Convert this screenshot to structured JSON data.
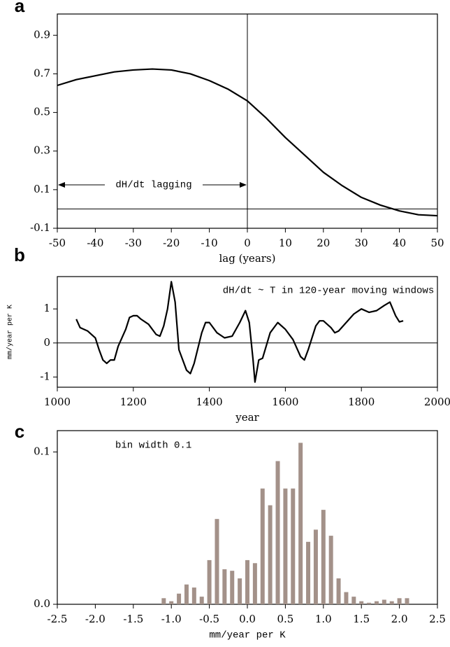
{
  "chart_data": [
    {
      "type": "line",
      "panel_label": "a",
      "xlabel": "lag (years)",
      "annotation": "dH/dt lagging",
      "x": [
        -50,
        -45,
        -40,
        -35,
        -30,
        -25,
        -20,
        -15,
        -10,
        -5,
        0,
        5,
        10,
        15,
        20,
        25,
        30,
        35,
        40,
        45,
        50
      ],
      "values": [
        0.64,
        0.67,
        0.69,
        0.71,
        0.72,
        0.725,
        0.72,
        0.7,
        0.665,
        0.62,
        0.56,
        0.47,
        0.37,
        0.28,
        0.19,
        0.12,
        0.06,
        0.02,
        -0.01,
        -0.03,
        -0.035
      ],
      "color": "#000000",
      "xlim": [
        -50,
        50
      ],
      "ylim": [
        -0.1,
        1.01
      ],
      "xticks": [
        -50,
        -40,
        -30,
        -20,
        -10,
        0,
        10,
        20,
        30,
        40,
        50
      ],
      "yticks": [
        -0.1,
        0.1,
        0.3,
        0.5,
        0.7,
        0.9
      ],
      "hline": 0,
      "vline": 0
    },
    {
      "type": "line",
      "panel_label": "b",
      "ylabel": "mm/year per K",
      "xlabel": "year",
      "annotation": "dH/dt ~ T in 120-year moving windows",
      "x": [
        1050,
        1060,
        1080,
        1100,
        1110,
        1120,
        1130,
        1140,
        1150,
        1160,
        1180,
        1190,
        1200,
        1210,
        1220,
        1240,
        1260,
        1270,
        1280,
        1290,
        1300,
        1310,
        1320,
        1340,
        1350,
        1360,
        1380,
        1390,
        1400,
        1420,
        1440,
        1460,
        1480,
        1495,
        1505,
        1515,
        1520,
        1530,
        1540,
        1560,
        1580,
        1600,
        1620,
        1640,
        1650,
        1660,
        1680,
        1690,
        1700,
        1720,
        1730,
        1740,
        1760,
        1780,
        1800,
        1820,
        1840,
        1860,
        1875,
        1890,
        1900,
        1910
      ],
      "values": [
        0.7,
        0.45,
        0.35,
        0.15,
        -0.2,
        -0.5,
        -0.6,
        -0.5,
        -0.5,
        -0.1,
        0.4,
        0.75,
        0.8,
        0.8,
        0.7,
        0.55,
        0.25,
        0.2,
        0.5,
        1.0,
        1.8,
        1.2,
        -0.2,
        -0.8,
        -0.9,
        -0.6,
        0.3,
        0.6,
        0.6,
        0.3,
        0.15,
        0.2,
        0.6,
        0.95,
        0.6,
        -0.5,
        -1.15,
        -0.5,
        -0.45,
        0.3,
        0.6,
        0.4,
        0.1,
        -0.4,
        -0.5,
        -0.2,
        0.5,
        0.65,
        0.65,
        0.45,
        0.3,
        0.35,
        0.6,
        0.85,
        1.0,
        0.9,
        0.95,
        1.1,
        1.2,
        0.8,
        0.62,
        0.65
      ],
      "color": "#000000",
      "xlim": [
        1000,
        2000
      ],
      "ylim": [
        -1.3,
        1.95
      ],
      "xticks": [
        1000,
        1200,
        1400,
        1600,
        1800,
        2000
      ],
      "yticks": [
        -1,
        0,
        1
      ],
      "hline": 0
    },
    {
      "type": "bar",
      "panel_label": "c",
      "xlabel": "mm/year per K",
      "annotation": "bin width 0.1",
      "x": [
        -1.1,
        -1.0,
        -0.9,
        -0.8,
        -0.7,
        -0.6,
        -0.5,
        -0.4,
        -0.3,
        -0.2,
        -0.1,
        0.0,
        0.1,
        0.2,
        0.3,
        0.4,
        0.5,
        0.6,
        0.7,
        0.8,
        0.9,
        1.0,
        1.1,
        1.2,
        1.3,
        1.4,
        1.5,
        1.6,
        1.7,
        1.8,
        1.9,
        2.0,
        2.1
      ],
      "values": [
        0.004,
        0.002,
        0.007,
        0.013,
        0.011,
        0.005,
        0.029,
        0.056,
        0.023,
        0.022,
        0.017,
        0.029,
        0.027,
        0.076,
        0.065,
        0.094,
        0.076,
        0.076,
        0.106,
        0.041,
        0.049,
        0.062,
        0.045,
        0.017,
        0.008,
        0.005,
        0.002,
        0.001,
        0.002,
        0.003,
        0.002,
        0.004,
        0.004
      ],
      "color": "#a39189",
      "xlim": [
        -2.5,
        2.5
      ],
      "ylim": [
        0,
        0.114
      ],
      "xticks": [
        -2.5,
        {
          "value": -2,
          "label": "-2.0"
        },
        -1.5,
        {
          "value": -1,
          "label": "-1.0"
        },
        -0.5,
        {
          "value": 0,
          "label": "0.0"
        },
        0.5,
        {
          "value": 1,
          "label": "1.0"
        },
        1.5,
        {
          "value": 2,
          "label": "2.0"
        },
        2.5
      ],
      "yticks": [
        {
          "value": 0,
          "label": "0.0"
        },
        0.1
      ]
    }
  ]
}
